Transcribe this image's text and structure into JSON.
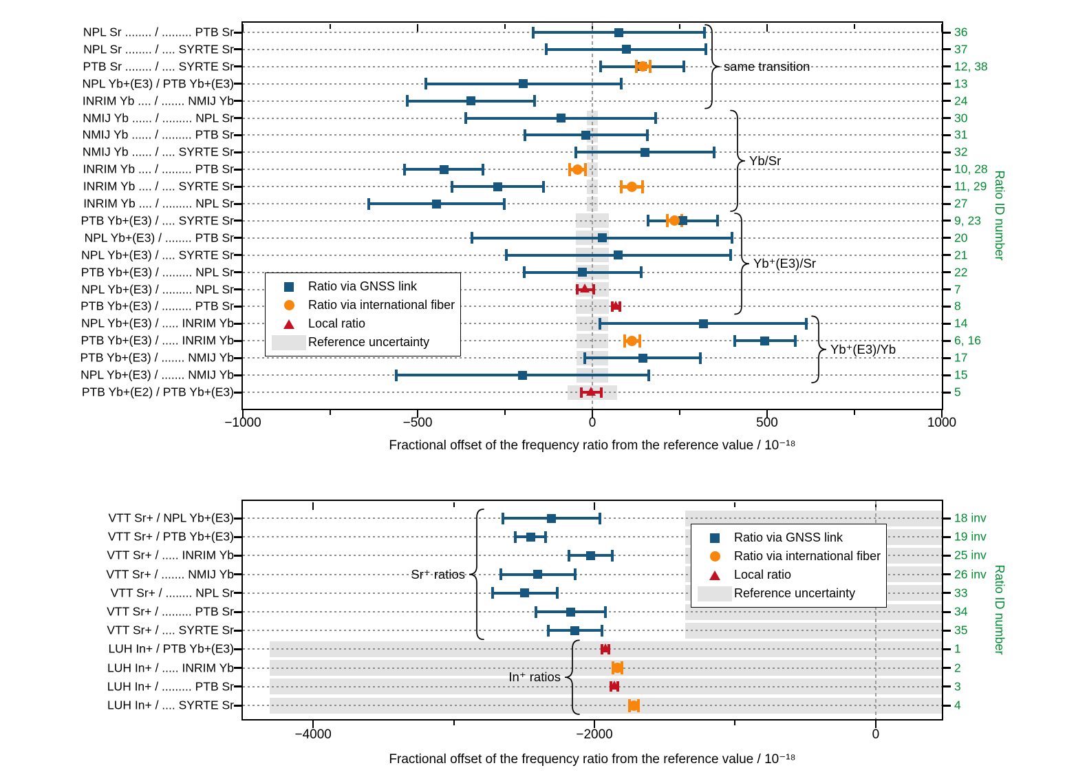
{
  "colors": {
    "gnss": "#16567f",
    "fiber": "#f8860d",
    "local": "#c41020",
    "reference_band": "#e3e3e3",
    "id_number_green": "#008a30",
    "gridline": "#8c8c8c",
    "frame": "#000000"
  },
  "legend": {
    "items": [
      {
        "series": "gnss",
        "marker": "square",
        "label": "Ratio via GNSS link"
      },
      {
        "series": "fiber",
        "marker": "circle",
        "label": "Ratio via international fiber"
      },
      {
        "series": "local",
        "marker": "triangle",
        "label": "Local ratio"
      },
      {
        "series": "reference",
        "marker": "band",
        "label": "Reference uncertainty"
      }
    ]
  },
  "chart_data": [
    {
      "type": "scatter",
      "subtype": "horizontal error-bar dot plot (forest plot)",
      "xlabel": "Fractional offset of the frequency ratio from the reference value / 10⁻¹⁸",
      "right_axis_label": "Ratio ID number",
      "xlim": [
        -1000,
        1000
      ],
      "xticks_major": [
        -1000,
        -500,
        0,
        500,
        1000
      ],
      "xticks_minor": [
        -750,
        -250,
        250,
        750
      ],
      "grid": "dotted horizontal line per row, dashed vertical zero line",
      "legend_position": "inside middle-left",
      "rows": [
        {
          "label": "NPL Sr ........ / ......... PTB Sr",
          "id": "36",
          "ref_unc": null,
          "points": [
            {
              "series": "gnss",
              "value": 75,
              "error": 245
            }
          ]
        },
        {
          "label": "NPL Sr ........ / .... SYRTE Sr",
          "id": "37",
          "ref_unc": null,
          "points": [
            {
              "series": "gnss",
              "value": 97,
              "error": 228
            }
          ]
        },
        {
          "label": "PTB Sr ........ / .... SYRTE Sr",
          "id": "12, 38",
          "ref_unc": null,
          "points": [
            {
              "series": "gnss",
              "value": 143,
              "error": 119
            },
            {
              "series": "fiber",
              "value": 145,
              "error": 20
            }
          ]
        },
        {
          "label": "NPL Yb+(E3) /  PTB Yb+(E3)",
          "id": "13",
          "ref_unc": null,
          "points": [
            {
              "series": "gnss",
              "value": -197,
              "error": 279
            }
          ]
        },
        {
          "label": "INRIM Yb .... / ....... NMIJ Yb",
          "id": "24",
          "ref_unc": null,
          "points": [
            {
              "series": "gnss",
              "value": -348,
              "error": 182
            }
          ]
        },
        {
          "label": "NMIJ Yb ...... / ......... NPL Sr",
          "id": "30",
          "ref_unc": 15,
          "points": [
            {
              "series": "gnss",
              "value": -90,
              "error": 272
            }
          ]
        },
        {
          "label": "NMIJ Yb ...... / ......... PTB Sr",
          "id": "31",
          "ref_unc": 15,
          "points": [
            {
              "series": "gnss",
              "value": -18,
              "error": 175
            }
          ]
        },
        {
          "label": "NMIJ Yb ...... / .... SYRTE Sr",
          "id": "32",
          "ref_unc": 15,
          "points": [
            {
              "series": "gnss",
              "value": 150,
              "error": 198
            }
          ]
        },
        {
          "label": "INRIM Yb .... / ......... PTB Sr",
          "id": "10, 28",
          "ref_unc": 15,
          "points": [
            {
              "series": "gnss",
              "value": -425,
              "error": 112
            },
            {
              "series": "fiber",
              "value": -42,
              "error": 22
            }
          ]
        },
        {
          "label": "INRIM Yb .... / .... SYRTE Sr",
          "id": "11, 29",
          "ref_unc": 15,
          "points": [
            {
              "series": "gnss",
              "value": -270,
              "error": 131
            },
            {
              "series": "fiber",
              "value": 113,
              "error": 31
            }
          ]
        },
        {
          "label": "INRIM Yb .... / ......... NPL Sr",
          "id": "27",
          "ref_unc": 15,
          "points": [
            {
              "series": "gnss",
              "value": -445,
              "error": 194
            }
          ]
        },
        {
          "label": "PTB Yb+(E3) / .... SYRTE Sr",
          "id": "9, 23",
          "ref_unc": 47,
          "points": [
            {
              "series": "gnss",
              "value": 259,
              "error": 99
            },
            {
              "series": "fiber",
              "value": 235,
              "error": 21
            }
          ]
        },
        {
          "label": "NPL Yb+(E3) / ........  PTB Sr",
          "id": "20",
          "ref_unc": 47,
          "points": [
            {
              "series": "gnss",
              "value": 28,
              "error": 372
            }
          ]
        },
        {
          "label": "NPL Yb+(E3) / .... SYRTE Sr",
          "id": "21",
          "ref_unc": 47,
          "points": [
            {
              "series": "gnss",
              "value": 74,
              "error": 321
            }
          ]
        },
        {
          "label": "PTB Yb+(E3) / ......... NPL Sr",
          "id": "22",
          "ref_unc": 47,
          "points": [
            {
              "series": "gnss",
              "value": -28,
              "error": 167
            }
          ]
        },
        {
          "label": "NPL Yb+(E3) / ......... NPL Sr",
          "id": "7",
          "ref_unc": 47,
          "points": [
            {
              "series": "local",
              "value": -20,
              "error": 24
            }
          ]
        },
        {
          "label": "PTB Yb+(E3) / ......... PTB Sr",
          "id": "8",
          "ref_unc": 47,
          "points": [
            {
              "series": "local",
              "value": 68,
              "error": 10
            }
          ]
        },
        {
          "label": "NPL Yb+(E3) / ..... INRIM Yb",
          "id": "14",
          "ref_unc": 45,
          "points": [
            {
              "series": "gnss",
              "value": 317,
              "error": 295
            }
          ]
        },
        {
          "label": "PTB Yb+(E3) / ..... INRIM Yb",
          "id": "6, 16",
          "ref_unc": 45,
          "points": [
            {
              "series": "gnss",
              "value": 494,
              "error": 87
            },
            {
              "series": "fiber",
              "value": 114,
              "error": 21
            }
          ]
        },
        {
          "label": "PTB Yb+(E3) / ....... NMIJ Yb",
          "id": "17",
          "ref_unc": 45,
          "points": [
            {
              "series": "gnss",
              "value": 144,
              "error": 165
            }
          ]
        },
        {
          "label": "NPL Yb+(E3) / ....... NMIJ Yb",
          "id": "15",
          "ref_unc": 45,
          "points": [
            {
              "series": "gnss",
              "value": -200,
              "error": 362
            }
          ]
        },
        {
          "label": "PTB Yb+(E2) / PTB Yb+(E3)",
          "id": "5",
          "ref_unc": 70,
          "points": [
            {
              "series": "local",
              "value": -3,
              "error": 29
            }
          ]
        }
      ],
      "groups": [
        {
          "label": "same transition",
          "first_row": 0,
          "last_row": 4
        },
        {
          "label": "Yb/Sr",
          "first_row": 5,
          "last_row": 10
        },
        {
          "label": "Yb⁺(E3)/Sr",
          "first_row": 11,
          "last_row": 16
        },
        {
          "label": "Yb⁺(E3)/Yb",
          "first_row": 17,
          "last_row": 20
        }
      ]
    },
    {
      "type": "scatter",
      "subtype": "horizontal error-bar dot plot (forest plot)",
      "xlabel": "Fractional offset of the frequency ratio from the reference value / 10⁻¹⁸",
      "right_axis_label": "Ratio ID number",
      "xlim": [
        -4500,
        470
      ],
      "xticks_major": [
        -4000,
        -2000,
        0
      ],
      "xticks_minor": [
        -3000,
        -1000
      ],
      "grid": "dotted horizontal line per row, dashed vertical zero line",
      "legend_position": "inside top-right",
      "rows": [
        {
          "label": "VTT Sr+ / NPL Yb+(E3)",
          "id": "18 inv",
          "ref_unc": 1355,
          "points": [
            {
              "series": "gnss",
              "value": -2305,
              "error": 345
            }
          ]
        },
        {
          "label": "VTT Sr+ / PTB Yb+(E3)",
          "id": "19 inv",
          "ref_unc": 1355,
          "points": [
            {
              "series": "gnss",
              "value": -2455,
              "error": 108
            }
          ]
        },
        {
          "label": "VTT Sr+ / ..... INRIM Yb",
          "id": "25 inv",
          "ref_unc": 1355,
          "points": [
            {
              "series": "gnss",
              "value": -2028,
              "error": 155
            }
          ]
        },
        {
          "label": "VTT Sr+ / ....... NMIJ Yb",
          "id": "26 inv",
          "ref_unc": 1355,
          "points": [
            {
              "series": "gnss",
              "value": -2403,
              "error": 265
            }
          ]
        },
        {
          "label": "VTT Sr+ /  ........ NPL Sr",
          "id": "33",
          "ref_unc": 1355,
          "points": [
            {
              "series": "gnss",
              "value": -2495,
              "error": 230
            }
          ]
        },
        {
          "label": "VTT Sr+ / ......... PTB Sr",
          "id": "34",
          "ref_unc": 1355,
          "points": [
            {
              "series": "gnss",
              "value": -2170,
              "error": 247
            }
          ]
        },
        {
          "label": "VTT Sr+ / .... SYRTE Sr",
          "id": "35",
          "ref_unc": 1355,
          "points": [
            {
              "series": "gnss",
              "value": -2138,
              "error": 192
            }
          ]
        },
        {
          "label": "LUH In+ / PTB Yb+(E3)",
          "id": "1",
          "ref_unc": 4310,
          "points": [
            {
              "series": "local",
              "value": -1922,
              "error": 25
            }
          ]
        },
        {
          "label": "LUH In+ / ..... INRIM Yb",
          "id": "2",
          "ref_unc": 4310,
          "points": [
            {
              "series": "fiber",
              "value": -1837,
              "error": 32
            }
          ]
        },
        {
          "label": "LUH In+ / ......... PTB Sr",
          "id": "3",
          "ref_unc": 4310,
          "points": [
            {
              "series": "local",
              "value": -1857,
              "error": 25
            }
          ]
        },
        {
          "label": "LUH In+ / .... SYRTE Sr",
          "id": "4",
          "ref_unc": 4310,
          "points": [
            {
              "series": "fiber",
              "value": -1720,
              "error": 33
            }
          ]
        }
      ],
      "groups": [
        {
          "label": "Sr⁺ ratios",
          "first_row": 0,
          "last_row": 6
        },
        {
          "label": "In⁺ ratios",
          "first_row": 7,
          "last_row": 10
        }
      ]
    }
  ]
}
